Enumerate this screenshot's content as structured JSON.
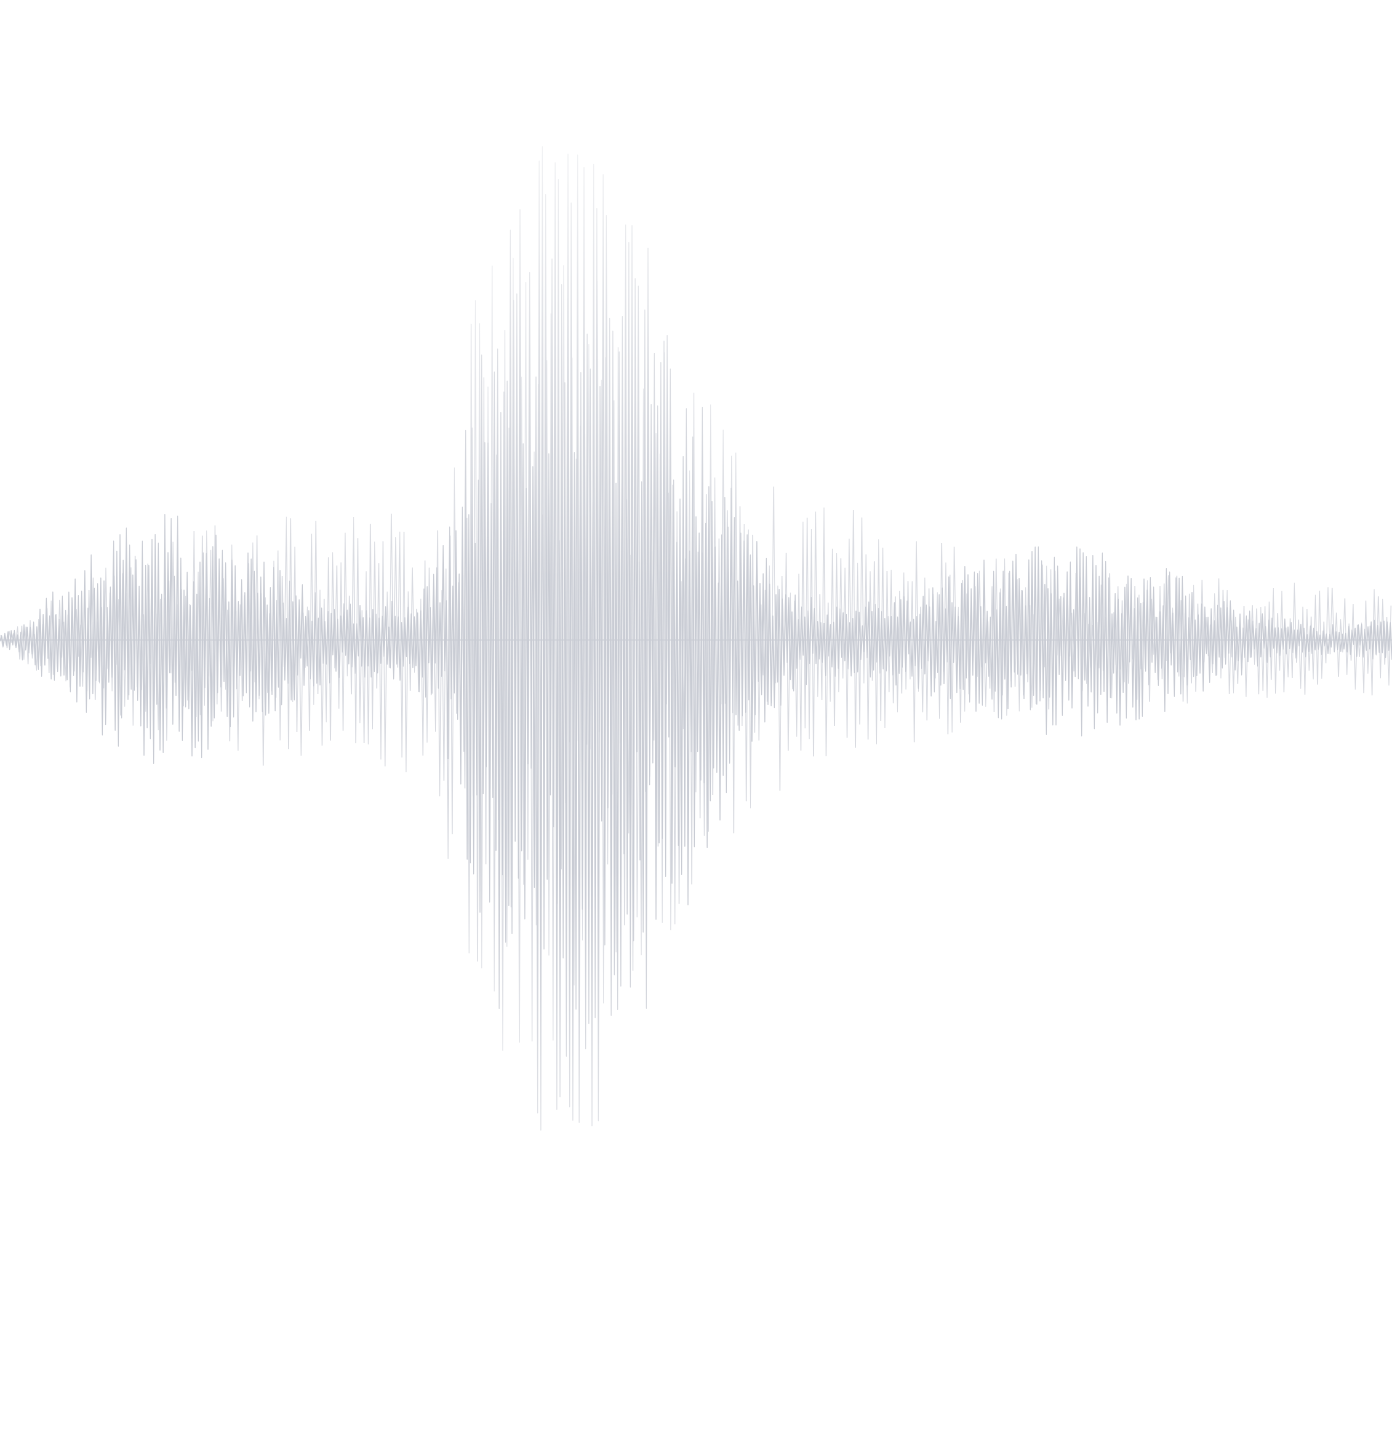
{
  "background_color": "#ffffff",
  "waveform": {
    "icon": "sound-wave-icon",
    "stroke_color": "#c9ccd4",
    "fade_color": "#ffffff",
    "envelope": [
      {
        "pos": 0.0,
        "amp": 0.005
      },
      {
        "pos": 0.06,
        "amp": 0.06
      },
      {
        "pos": 0.13,
        "amp": 0.1
      },
      {
        "pos": 0.2,
        "amp": 0.12
      },
      {
        "pos": 0.26,
        "amp": 0.13
      },
      {
        "pos": 0.31,
        "amp": 0.12
      },
      {
        "pos": 0.335,
        "amp": 0.3
      },
      {
        "pos": 0.36,
        "amp": 0.38
      },
      {
        "pos": 0.39,
        "amp": 0.4
      },
      {
        "pos": 0.42,
        "amp": 0.36
      },
      {
        "pos": 0.46,
        "amp": 0.3
      },
      {
        "pos": 0.5,
        "amp": 0.24
      },
      {
        "pos": 0.54,
        "amp": 0.16
      },
      {
        "pos": 0.58,
        "amp": 0.13
      },
      {
        "pos": 0.63,
        "amp": 0.12
      },
      {
        "pos": 0.68,
        "amp": 0.09
      },
      {
        "pos": 0.75,
        "amp": 0.07
      },
      {
        "pos": 0.85,
        "amp": 0.06
      },
      {
        "pos": 1.0,
        "amp": 0.05
      }
    ]
  }
}
